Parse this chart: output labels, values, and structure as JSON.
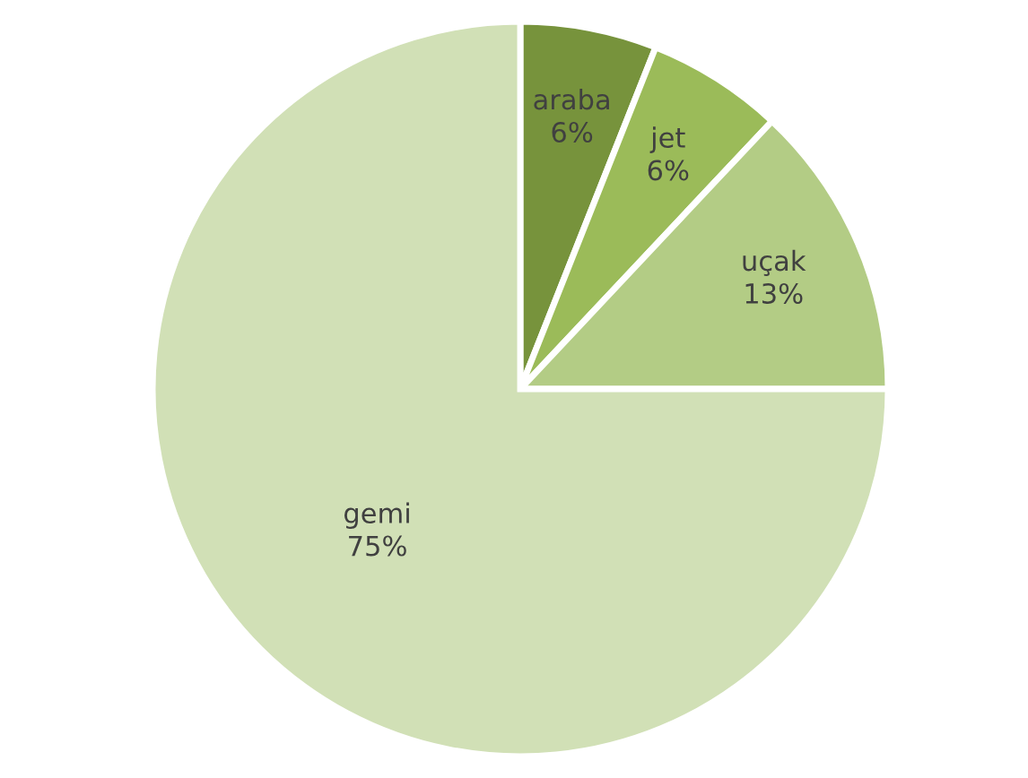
{
  "chart_data": {
    "type": "pie",
    "categories": [
      "araba",
      "jet",
      "uçak",
      "gemi"
    ],
    "values": [
      6,
      6,
      13,
      75
    ],
    "value_labels": [
      "6%",
      "6%",
      "13%",
      "75%"
    ],
    "colors": [
      "#77933c",
      "#9bbb59",
      "#b3cc85",
      "#d1e0b6"
    ],
    "legend": false
  }
}
